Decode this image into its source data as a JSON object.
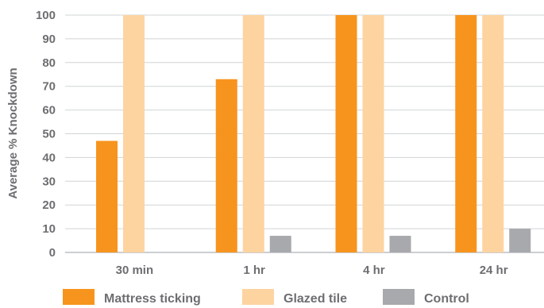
{
  "chart_data": {
    "type": "bar",
    "title": "",
    "xlabel": "",
    "ylabel": "Average % Knockdown",
    "ylim": [
      0,
      100
    ],
    "yticks": [
      0,
      10,
      20,
      30,
      40,
      50,
      60,
      70,
      80,
      90,
      100
    ],
    "grid": true,
    "legend_position": "bottom",
    "categories": [
      "30 min",
      "1 hr",
      "4 hr",
      "24 hr"
    ],
    "series": [
      {
        "name": "Mattress ticking",
        "color": "#f7941d",
        "values": [
          47,
          73,
          100,
          100
        ]
      },
      {
        "name": "Glazed tile",
        "color": "#fdd4a0",
        "values": [
          100,
          100,
          100,
          100
        ]
      },
      {
        "name": "Control",
        "color": "#a7a9ac",
        "values": [
          0,
          7,
          7,
          10
        ]
      }
    ]
  }
}
